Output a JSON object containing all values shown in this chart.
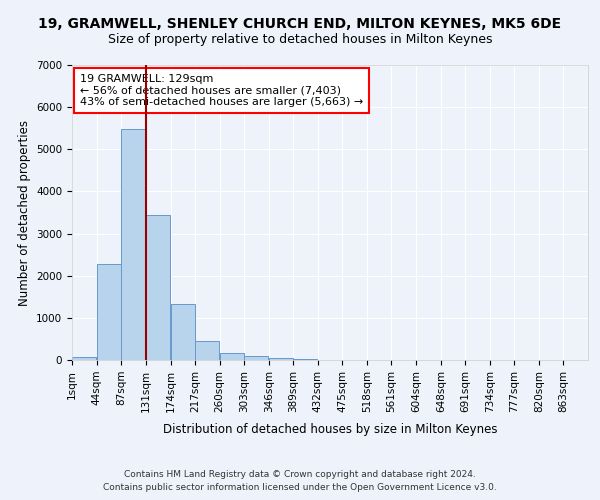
{
  "title": "19, GRAMWELL, SHENLEY CHURCH END, MILTON KEYNES, MK5 6DE",
  "subtitle": "Size of property relative to detached houses in Milton Keynes",
  "xlabel": "Distribution of detached houses by size in Milton Keynes",
  "ylabel": "Number of detached properties",
  "footer_line1": "Contains HM Land Registry data © Crown copyright and database right 2024.",
  "footer_line2": "Contains public sector information licensed under the Open Government Licence v3.0.",
  "bar_labels": [
    "1sqm",
    "44sqm",
    "87sqm",
    "131sqm",
    "174sqm",
    "217sqm",
    "260sqm",
    "303sqm",
    "346sqm",
    "389sqm",
    "432sqm",
    "475sqm",
    "518sqm",
    "561sqm",
    "604sqm",
    "648sqm",
    "691sqm",
    "734sqm",
    "777sqm",
    "820sqm",
    "863sqm"
  ],
  "bar_values": [
    75,
    2280,
    5480,
    3440,
    1320,
    460,
    160,
    90,
    55,
    30,
    0,
    0,
    0,
    0,
    0,
    0,
    0,
    0,
    0,
    0,
    0
  ],
  "bar_color": "#b8d4ed",
  "bar_edge_color": "#6699cc",
  "ylim": [
    0,
    7000
  ],
  "yticks": [
    0,
    1000,
    2000,
    3000,
    4000,
    5000,
    6000,
    7000
  ],
  "annotation_text_line1": "19 GRAMWELL: 129sqm",
  "annotation_text_line2": "← 56% of detached houses are smaller (7,403)",
  "annotation_text_line3": "43% of semi-detached houses are larger (5,663) →",
  "bin_starts": [
    1,
    44,
    87,
    131,
    174,
    217,
    260,
    303,
    346,
    389,
    432,
    475,
    518,
    561,
    604,
    648,
    691,
    734,
    777,
    820,
    863
  ],
  "bin_width": 43,
  "vline_x": 131,
  "background_color": "#eef2fa",
  "grid_color": "#ffffff",
  "title_fontsize": 10,
  "subtitle_fontsize": 9,
  "axis_label_fontsize": 8.5,
  "tick_fontsize": 7.5,
  "footer_fontsize": 6.5
}
